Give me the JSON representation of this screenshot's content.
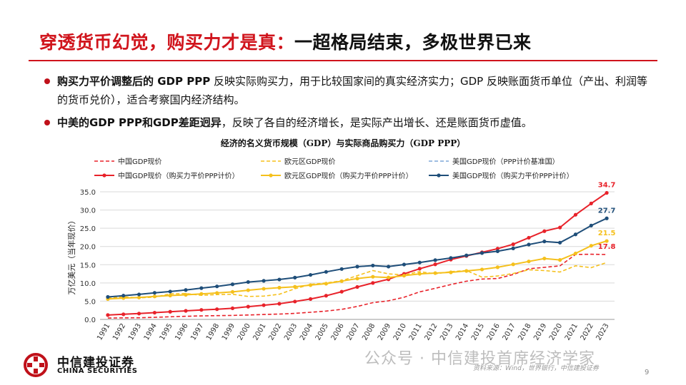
{
  "slide": {
    "title_red": "穿透货币幻觉，购买力才是真：",
    "title_black": "一超格局结束，多极世界已来",
    "bullets": [
      {
        "bold": "购买力平价调整后的 GDP PPP",
        "text": " 反映实际购买力，用于比较国家间的真实经济实力；GDP 反映账面货币单位（产出、利润等的货币兑价），适合考察国内经济结构。"
      },
      {
        "bold": "中美的GDP PPP和GDP差距迥异",
        "text": "，反映了各自的经济增长，是实际产出增长、还是账面货币虚值。"
      }
    ],
    "logo_cn": "中信建投证券",
    "logo_en": "CHINA SECURITIES",
    "watermark": "公众号 · 中信建投首席经济学家",
    "source": "资料来源：Wind，世界银行，中信建投证券",
    "page_number": "9"
  },
  "chart_data": {
    "type": "line",
    "title": "经济的名义货币规模（GDP）与实际商品购买力（GDP PPP）",
    "ylabel": "万亿美元（当年现价）",
    "ylim": [
      0,
      35
    ],
    "yticks": [
      "0.0",
      "5.0",
      "10.0",
      "15.0",
      "20.0",
      "25.0",
      "30.0",
      "35.0"
    ],
    "grid": "horizontal",
    "legend_position": "top",
    "categories": [
      "1991",
      "1992",
      "1993",
      "1994",
      "1995",
      "1996",
      "1997",
      "1998",
      "1999",
      "2000",
      "2001",
      "2002",
      "2003",
      "2004",
      "2005",
      "2006",
      "2007",
      "2008",
      "2009",
      "2010",
      "2011",
      "2012",
      "2013",
      "2014",
      "2015",
      "2016",
      "2017",
      "2018",
      "2019",
      "2020",
      "2021",
      "2022",
      "2023"
    ],
    "series": [
      {
        "name": "中国GDP现价",
        "color": "#e8222a",
        "dashed": true,
        "marker": false,
        "values": [
          0.38,
          0.43,
          0.44,
          0.56,
          0.73,
          0.86,
          0.96,
          1.03,
          1.09,
          1.21,
          1.34,
          1.47,
          1.66,
          1.96,
          2.29,
          2.75,
          3.55,
          4.59,
          5.1,
          6.09,
          7.55,
          8.53,
          9.57,
          10.48,
          11.06,
          11.23,
          12.31,
          13.89,
          14.28,
          14.69,
          17.82,
          17.88,
          17.79
        ]
      },
      {
        "name": "欧元区GDP现价",
        "color": "#f5c01c",
        "dashed": true,
        "marker": false,
        "values": [
          5.8,
          6.2,
          5.9,
          6.1,
          7.0,
          7.1,
          6.6,
          6.8,
          6.9,
          6.3,
          6.4,
          6.9,
          8.4,
          9.6,
          10.0,
          10.6,
          12.0,
          13.4,
          12.5,
          12.2,
          13.1,
          12.5,
          13.1,
          13.4,
          11.6,
          11.9,
          12.6,
          13.6,
          13.4,
          13.0,
          14.7,
          14.2,
          15.6
        ]
      },
      {
        "name": "美国GDP现价（PPP计价基准国）",
        "color": "#7fa7d8",
        "dashed": true,
        "marker": false,
        "values": [
          6.16,
          6.52,
          6.86,
          7.29,
          7.64,
          8.07,
          8.58,
          9.06,
          9.63,
          10.25,
          10.58,
          10.94,
          11.46,
          12.21,
          13.04,
          13.82,
          14.47,
          14.77,
          14.48,
          15.05,
          15.6,
          16.25,
          16.84,
          17.55,
          18.21,
          18.7,
          19.48,
          20.53,
          21.38,
          21.06,
          23.32,
          25.74,
          27.72
        ]
      },
      {
        "name": "中国GDP现价（购买力平价PPP计价）",
        "color": "#e8222a",
        "dashed": false,
        "marker": true,
        "values": [
          1.2,
          1.4,
          1.6,
          1.85,
          2.1,
          2.35,
          2.6,
          2.8,
          3.05,
          3.5,
          3.9,
          4.3,
          4.9,
          5.6,
          6.5,
          7.6,
          8.9,
          10.0,
          11.0,
          12.5,
          13.9,
          15.1,
          16.4,
          17.4,
          18.4,
          19.4,
          20.6,
          22.4,
          24.2,
          25.2,
          28.7,
          31.8,
          34.7
        ]
      },
      {
        "name": "欧元区GDP现价（购买力平价PPP计价）",
        "color": "#f5c01c",
        "dashed": false,
        "marker": true,
        "values": [
          5.6,
          5.85,
          6.0,
          6.3,
          6.55,
          6.75,
          7.0,
          7.25,
          7.55,
          8.0,
          8.4,
          8.7,
          8.95,
          9.4,
          9.8,
          10.5,
          11.2,
          11.7,
          11.5,
          12.0,
          12.5,
          12.7,
          12.9,
          13.3,
          13.7,
          14.3,
          15.1,
          15.9,
          16.7,
          16.3,
          18.1,
          20.2,
          21.5
        ]
      },
      {
        "name": "美国GDP现价（购买力平价PPP计价）",
        "color": "#1f4e79",
        "dashed": false,
        "marker": true,
        "values": [
          6.16,
          6.52,
          6.86,
          7.29,
          7.64,
          8.07,
          8.58,
          9.06,
          9.63,
          10.25,
          10.58,
          10.94,
          11.46,
          12.21,
          13.04,
          13.82,
          14.47,
          14.77,
          14.48,
          15.05,
          15.6,
          16.25,
          16.84,
          17.55,
          18.21,
          18.7,
          19.48,
          20.53,
          21.38,
          21.06,
          23.32,
          25.74,
          27.72
        ]
      }
    ],
    "end_labels": [
      {
        "series_index": 3,
        "text": "34.7",
        "value": 34.7,
        "color": "#e8222a"
      },
      {
        "series_index": 5,
        "text": "27.7",
        "value": 27.7,
        "color": "#1f4e79"
      },
      {
        "series_index": 4,
        "text": "21.5",
        "value": 21.5,
        "color": "#f5c01c"
      },
      {
        "series_index": 0,
        "text": "17.8",
        "value": 17.8,
        "color": "#e8222a"
      }
    ]
  }
}
